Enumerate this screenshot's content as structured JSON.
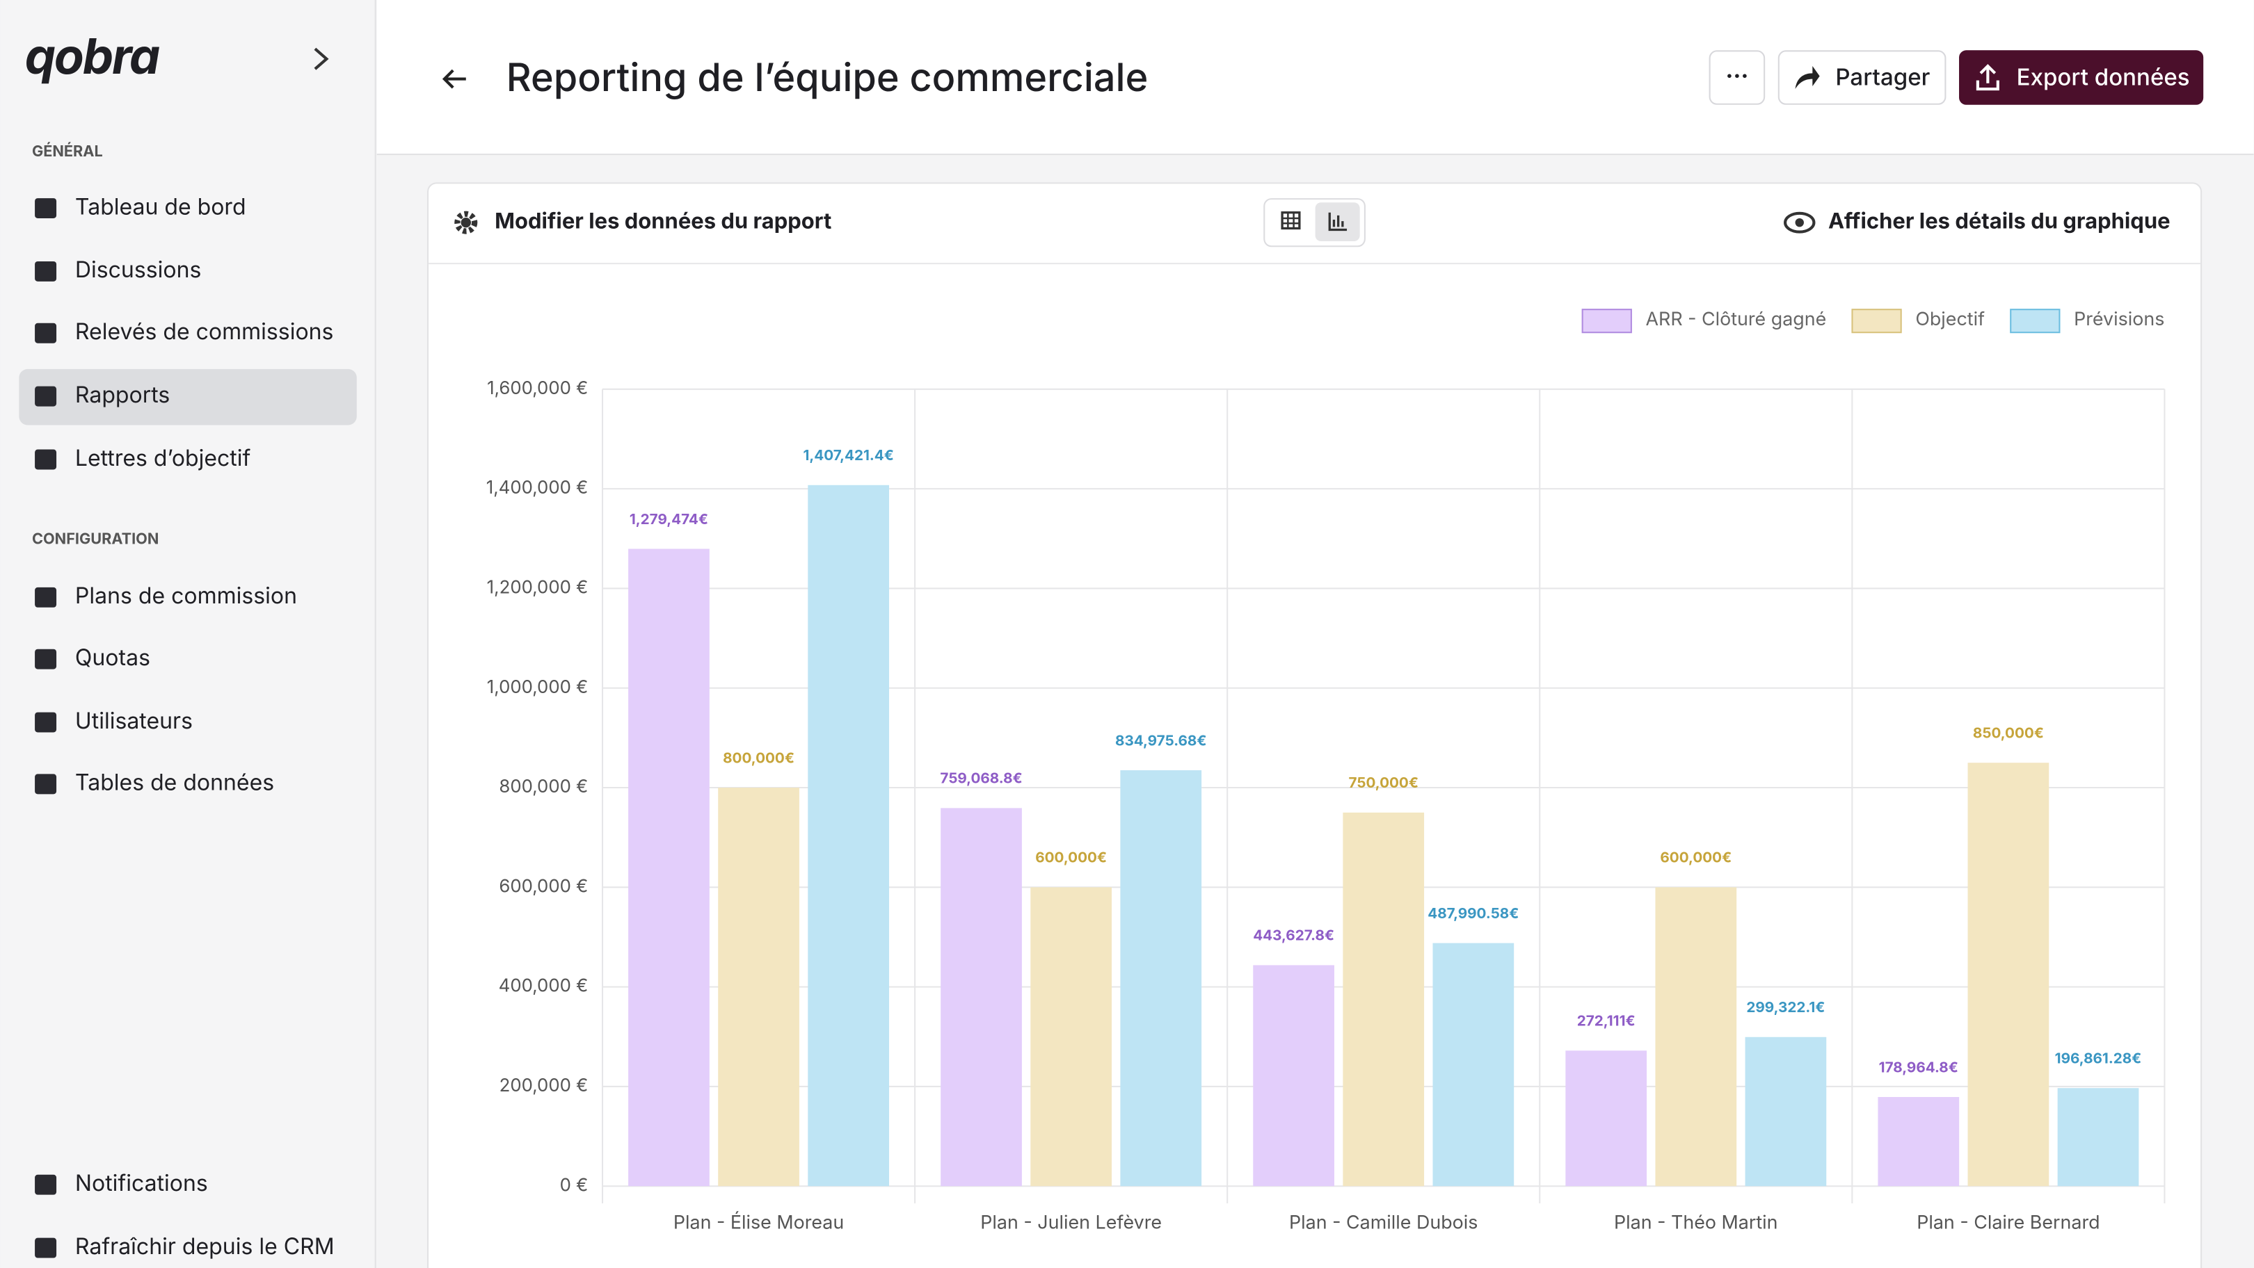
{
  "sidebar": {
    "logo": "qobra",
    "sections": [
      {
        "title": "GÉNÉRAL",
        "items": [
          "Tableau de bord",
          "Discussions",
          "Relevés de commissions",
          "Rapports",
          "Lettres d’objectif"
        ]
      },
      {
        "title": "CONFIGURATION",
        "items": [
          "Plans de commission",
          "Quotas",
          "Utilisateurs",
          "Tables de données"
        ]
      }
    ],
    "bottom_items": [
      "Notifications",
      "Rafraîchir depuis le CRM"
    ]
  },
  "header": {
    "title": "Reporting de l’équipe commerciale",
    "more": "···",
    "share": "Partager",
    "export": "Export données"
  },
  "toolbar": {
    "edit": "Modifier les données du rapport",
    "details": "Afficher les détails du graphique"
  },
  "chart_data": {
    "type": "bar",
    "categories": [
      "Plan - Élise Moreau",
      "Plan - Julien Lefèvre",
      "Plan - Camille Dubois",
      "Plan - Théo Martin",
      "Plan - Claire Bernard"
    ],
    "series": [
      {
        "name": "ARR - Clôturé gagné",
        "color": "#e3cefb",
        "border_color": "#b08be0",
        "label_color": "#8e5cc6",
        "values": [
          1279474,
          759068.8,
          443627.8,
          272111,
          178964.8
        ],
        "value_labels": [
          "1,279,474€",
          "759,068.8€",
          "443,627.8€",
          "272,111€",
          "178,964.8€"
        ]
      },
      {
        "name": "Objectif",
        "color": "#f3e6c1",
        "border_color": "#d8c27c",
        "label_color": "#c6a43a",
        "values": [
          800000,
          600000,
          750000,
          600000,
          850000
        ],
        "value_labels": [
          "800,000€",
          "600,000€",
          "750,000€",
          "600,000€",
          "850,000€"
        ]
      },
      {
        "name": "Prévisions",
        "color": "#bee4f4",
        "border_color": "#6cbee0",
        "label_color": "#3a96c2",
        "values": [
          1407421.4,
          834975.68,
          487990.58,
          299322.1,
          196861.28
        ],
        "value_labels": [
          "1,407,421.4€",
          "834,975.68€",
          "487,990.58€",
          "299,322.1€",
          "196,861.28€"
        ]
      }
    ],
    "ylim": [
      0,
      1600000
    ],
    "yticks": [
      {
        "value": 0,
        "label": "0 €"
      },
      {
        "value": 200000,
        "label": "200,000 €"
      },
      {
        "value": 400000,
        "label": "400,000 €"
      },
      {
        "value": 600000,
        "label": "600,000 €"
      },
      {
        "value": 800000,
        "label": "800,000 €"
      },
      {
        "value": 1000000,
        "label": "1,000,000 €"
      },
      {
        "value": 1200000,
        "label": "1,200,000 €"
      },
      {
        "value": 1400000,
        "label": "1,400,000 €"
      },
      {
        "value": 1600000,
        "label": "1,600,000 €"
      }
    ],
    "grid": true,
    "legend": "top-right"
  }
}
